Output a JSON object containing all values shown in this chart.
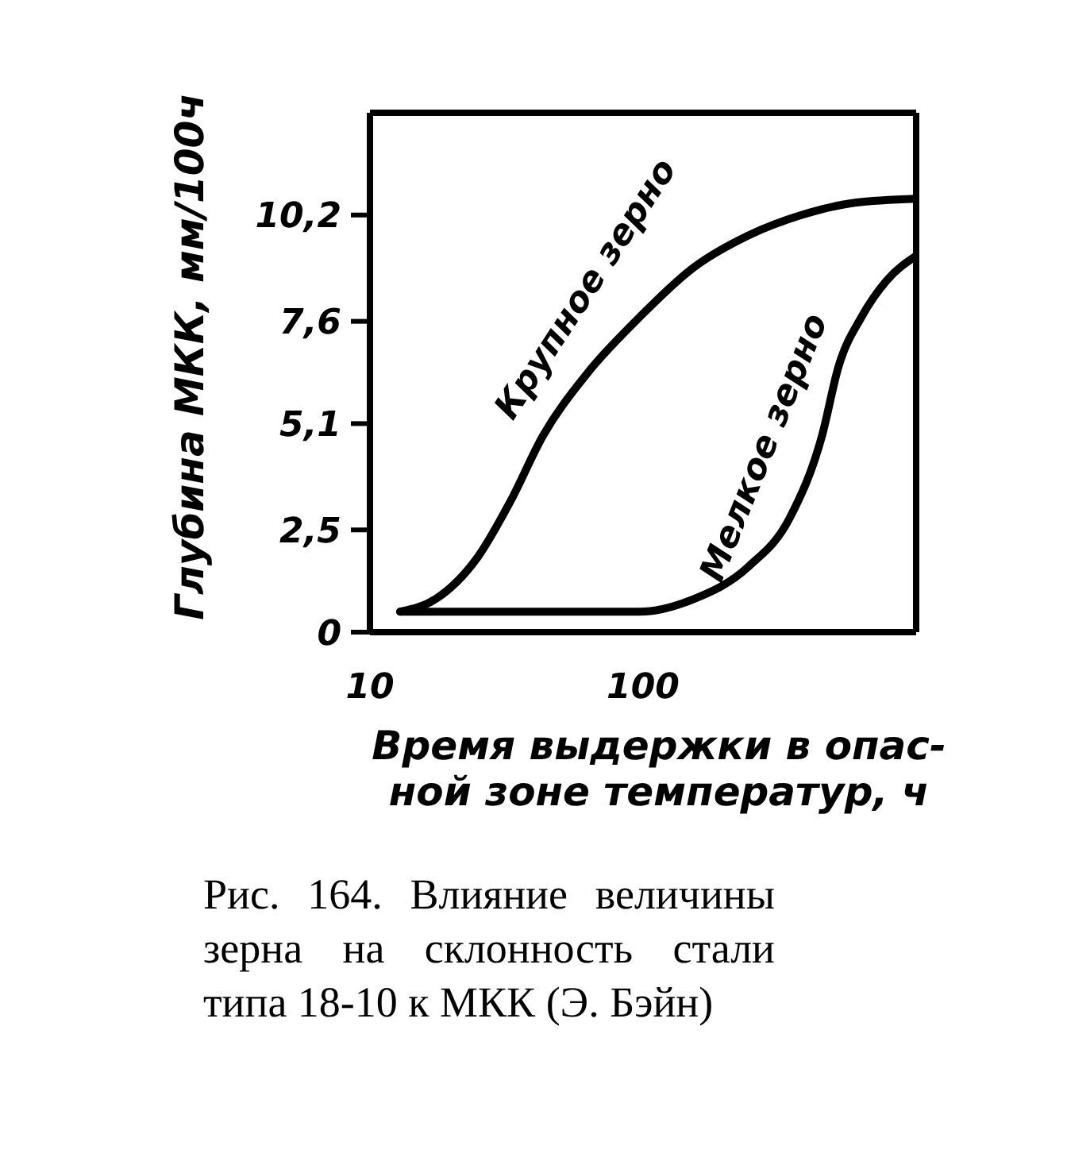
{
  "chart_data": {
    "type": "line",
    "xlabel": "Время выдержки в опас-\nной зоне температур, ч",
    "ylabel": "Глубина МКК, мм/100ч",
    "log": "x",
    "xlim": [
      10,
      1000
    ],
    "xticks": [
      10,
      100
    ],
    "ylim": [
      0,
      12.7
    ],
    "yticks": [
      {
        "value": 0,
        "label": "0"
      },
      {
        "value": 2.5,
        "label": "2,5"
      },
      {
        "value": 5.1,
        "label": "5,1"
      },
      {
        "value": 7.6,
        "label": "7,6"
      },
      {
        "value": 10.2,
        "label": "10,2"
      }
    ],
    "legend": false,
    "marker": "none",
    "line_style": "solid",
    "series": [
      {
        "name": "Крупное зерно",
        "color": "#000000",
        "x": [
          12.9,
          17.3,
          24.9,
          32.7,
          43,
          62,
          97,
          152,
          243,
          380,
          596,
          1000
        ],
        "values": [
          0.5,
          0.8,
          1.85,
          3.2,
          4.8,
          6.3,
          7.7,
          8.9,
          9.7,
          10.2,
          10.5,
          10.6
        ]
      },
      {
        "name": "Мелкое зерно",
        "color": "#000000",
        "x": [
          12.9,
          97,
          152,
          243,
          345,
          452,
          520,
          630,
          780,
          1000
        ],
        "values": [
          0.5,
          0.5,
          0.8,
          1.6,
          2.8,
          4.8,
          6.5,
          7.7,
          8.6,
          9.2
        ]
      }
    ],
    "annotations": [
      "Рис. 164. Влияние величины зерна на склонность стали типа 18-10 к МКК (Э. Бэйн)"
    ]
  }
}
